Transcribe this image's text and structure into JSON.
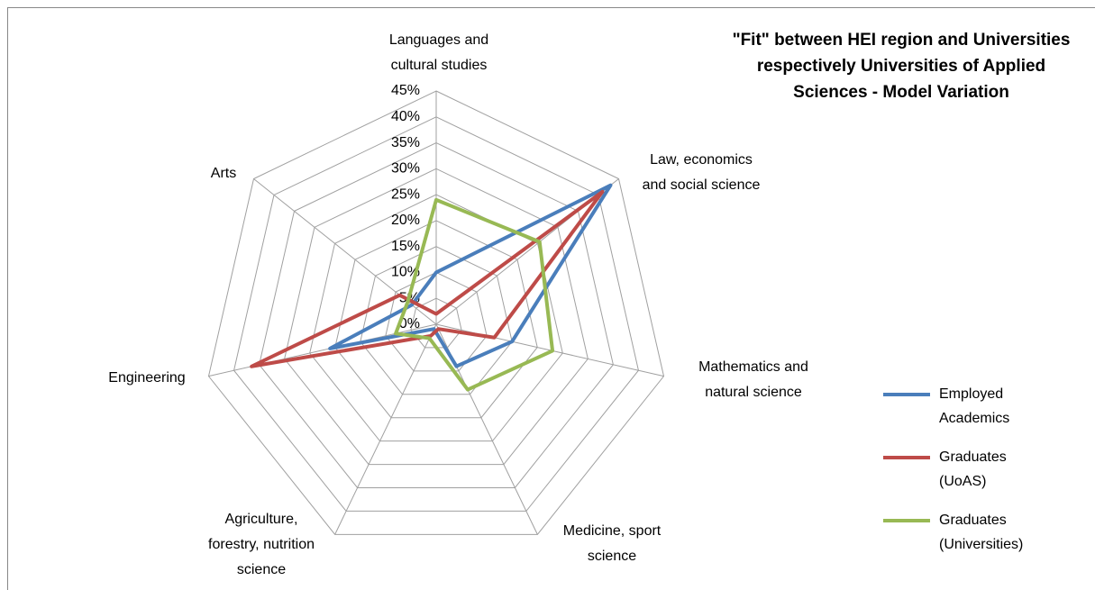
{
  "chart_data": {
    "type": "radar",
    "title": "\"Fit\" between HEI region and Universities respectively Universities of Applied Sciences - Model Variation",
    "categories": [
      [
        "Languages and",
        "cultural studies"
      ],
      [
        "Law, economics",
        "and social science"
      ],
      [
        "Mathematics and",
        "natural science"
      ],
      [
        "Medicine, sport",
        "science"
      ],
      [
        "Agriculture,",
        "forestry, nutrition",
        "science"
      ],
      [
        "Engineering"
      ],
      [
        "Arts"
      ]
    ],
    "series": [
      {
        "name": "Employed Academics",
        "color": "#4a7ebb",
        "values": [
          10,
          43,
          15,
          9,
          1,
          21,
          6
        ]
      },
      {
        "name": "Graduates (UoAS)",
        "color": "#be4b48",
        "values": [
          2,
          41,
          11.5,
          1,
          2.5,
          36.5,
          9
        ]
      },
      {
        "name": "Graduates (Universities)",
        "color": "#98b954",
        "values": [
          24,
          25.5,
          23,
          14,
          3,
          8,
          7
        ]
      }
    ],
    "ylim": [
      0,
      45
    ],
    "yticks": [
      {
        "value": 0,
        "label": "0%"
      },
      {
        "value": 5,
        "label": "5%"
      },
      {
        "value": 10,
        "label": "10%"
      },
      {
        "value": 15,
        "label": "15%"
      },
      {
        "value": 20,
        "label": "20%"
      },
      {
        "value": 25,
        "label": "25%"
      },
      {
        "value": 30,
        "label": "30%"
      },
      {
        "value": 35,
        "label": "35%"
      },
      {
        "value": 40,
        "label": "40%"
      },
      {
        "value": 45,
        "label": "45%"
      }
    ],
    "grid": true,
    "legend": "right"
  }
}
